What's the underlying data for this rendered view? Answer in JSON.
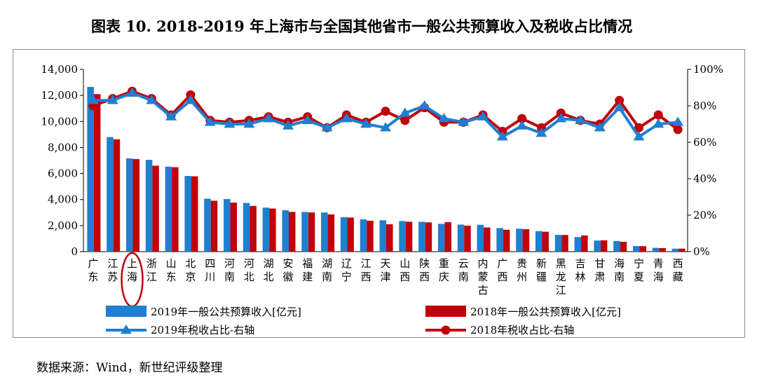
{
  "title": "图表 10. 2018-2019 年上海市与全国其他省市一般公共预算收入及税收占比情况",
  "source": "数据来源：Wind，新世纪评级整理",
  "chart_data": {
    "type": "bar",
    "categories": [
      "广东",
      "江苏",
      "上海",
      "浙江",
      "山东",
      "北京",
      "四川",
      "河南",
      "河北",
      "湖北",
      "安徽",
      "福建",
      "湖南",
      "辽宁",
      "江西",
      "天津",
      "山西",
      "陕西",
      "重庆",
      "云南",
      "内蒙古",
      "广西",
      "贵州",
      "新疆",
      "黑龙江",
      "吉林",
      "甘肃",
      "海南",
      "宁夏",
      "青海",
      "西藏"
    ],
    "highlighted_category": "上海",
    "y_left": {
      "min": 0,
      "max": 14000,
      "step": 2000,
      "tick_labels": [
        "0",
        "2,000",
        "4,000",
        "6,000",
        "8,000",
        "10,000",
        "12,000",
        "14,000"
      ]
    },
    "y_right": {
      "min": 0,
      "max": 100,
      "step": 20,
      "tick_labels": [
        "0%",
        "20%",
        "40%",
        "60%",
        "80%",
        "100%"
      ]
    },
    "series": [
      {
        "name": "2019年一般公共预算收入[亿元]",
        "kind": "bar",
        "axis": "left",
        "color": "#1f7fd0",
        "values": [
          12650,
          8800,
          7165,
          7050,
          6530,
          5815,
          4070,
          4040,
          3740,
          3380,
          3180,
          3050,
          3005,
          2650,
          2480,
          2410,
          2350,
          2290,
          2135,
          2075,
          2060,
          1810,
          1760,
          1575,
          1285,
          1115,
          850,
          815,
          425,
          290,
          225
        ]
      },
      {
        "name": "2018年一般公共预算收入[亿元]",
        "kind": "bar",
        "axis": "left",
        "color": "#c0000b",
        "values": [
          12100,
          8630,
          7110,
          6600,
          6485,
          5785,
          3910,
          3765,
          3510,
          3310,
          3050,
          3010,
          2860,
          2620,
          2375,
          2105,
          2295,
          2245,
          2270,
          1995,
          1855,
          1680,
          1725,
          1530,
          1280,
          1240,
          870,
          750,
          420,
          270,
          230
        ]
      },
      {
        "name": "2019年税收占比-右轴",
        "kind": "line",
        "axis": "right",
        "color": "#1f7fd0",
        "marker": "triangle",
        "values": [
          83,
          83,
          87,
          83,
          74,
          83,
          71,
          70,
          70,
          73,
          69,
          72,
          68,
          73,
          70,
          68,
          76,
          80,
          73,
          71,
          74,
          63,
          69,
          65,
          73,
          72,
          68,
          79,
          63,
          70,
          71
        ]
      },
      {
        "name": "2018年税收占比-右轴",
        "kind": "line",
        "axis": "right",
        "color": "#c0000b",
        "marker": "circle",
        "values": [
          80,
          84,
          88,
          84,
          75,
          86,
          72,
          71,
          72,
          74,
          71,
          74,
          68,
          75,
          71,
          77,
          72,
          79,
          71,
          71,
          75,
          66,
          73,
          68,
          76,
          72,
          70,
          83,
          68,
          75,
          67
        ]
      }
    ]
  }
}
